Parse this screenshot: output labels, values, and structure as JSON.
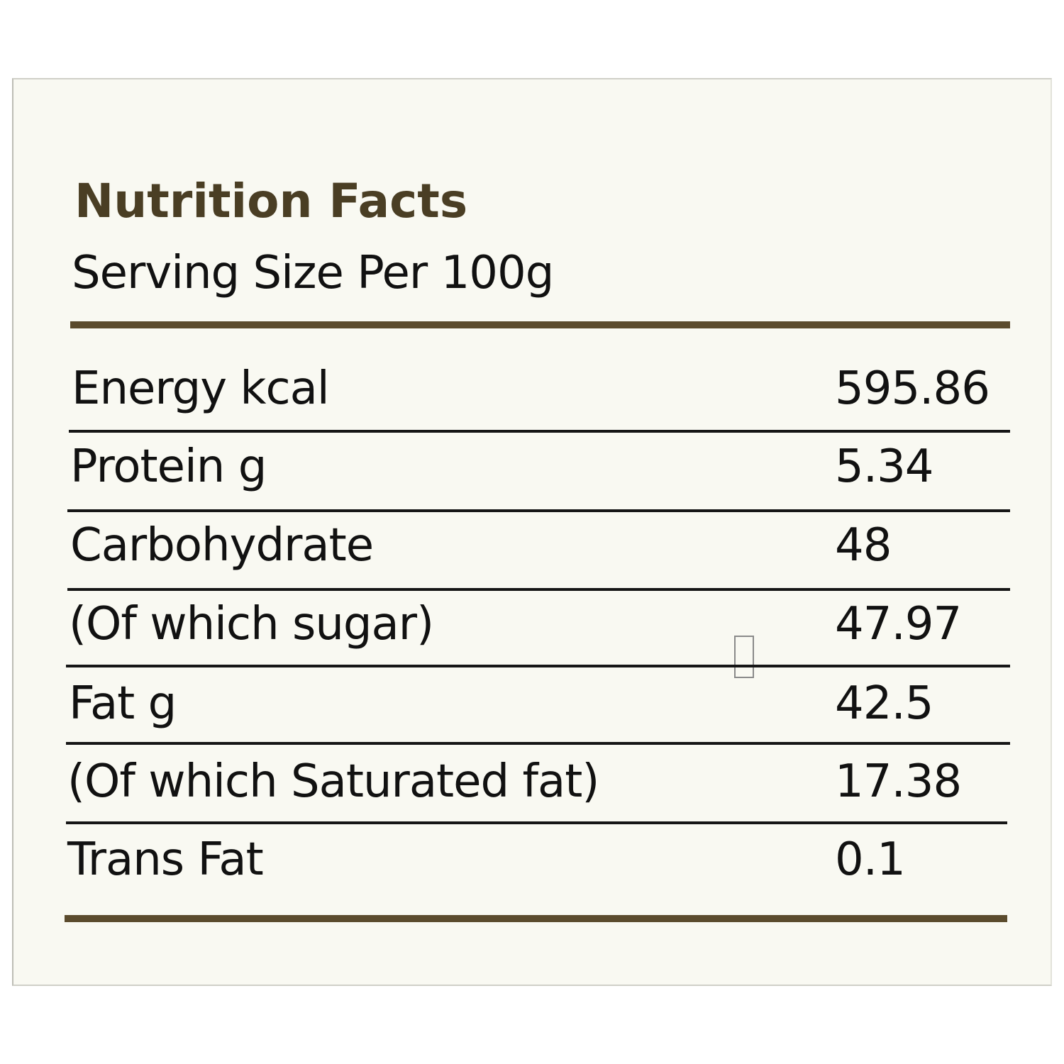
{
  "label": {
    "title": "Nutrition Facts",
    "serving_size": "Serving Size Per 100g",
    "rows": [
      {
        "nutrient": "Energy kcal",
        "value": "595.86"
      },
      {
        "nutrient": "Protein g",
        "value": "5.34"
      },
      {
        "nutrient": "Carbohydrate",
        "value": "48"
      },
      {
        "nutrient": "(Of which sugar)",
        "value": "47.97"
      },
      {
        "nutrient": "Fat g",
        "value": "42.5"
      },
      {
        "nutrient": "(Of which Saturated fat)",
        "value": "17.38"
      },
      {
        "nutrient": "Trans Fat",
        "value": "0.1"
      }
    ]
  },
  "colors": {
    "panel_background": "#f9f9f2",
    "title_text": "#4a3e24",
    "thick_rule": "#5b4b2d",
    "body_text": "#111111"
  }
}
